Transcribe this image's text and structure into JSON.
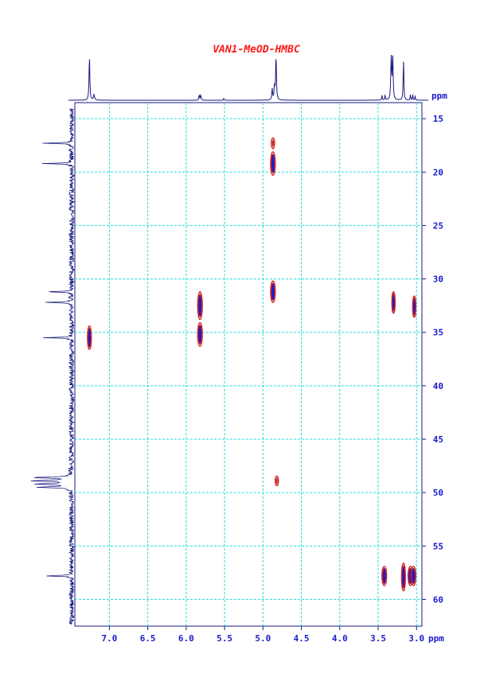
{
  "chart_data": {
    "type": "heatmap",
    "title": "VAN1-MeOD-HMBC",
    "x_unit": "ppm",
    "y_unit": "ppm",
    "xlim": [
      7.45,
      2.93
    ],
    "ylim": [
      13.5,
      62.5
    ],
    "x_ticks": [
      "7.0",
      "6.5",
      "6.0",
      "5.5",
      "5.0",
      "4.5",
      "4.0",
      "3.5",
      "3.0"
    ],
    "y_ticks": [
      "15",
      "20",
      "25",
      "30",
      "35",
      "40",
      "45",
      "50",
      "55",
      "60"
    ],
    "grid": true,
    "colors": {
      "frame": "#1a1a80",
      "grid": "#22dddd",
      "contour_pos": "#cc2222",
      "contour_neg": "#1a1ad0",
      "title": "#ff1a1a",
      "ticks": "#1a1acc"
    },
    "peaks": [
      {
        "h": 7.26,
        "c": 35.5,
        "dh": 0.025,
        "dc": 1.1,
        "weak": false
      },
      {
        "h": 5.82,
        "c": 32.5,
        "dh": 0.03,
        "dc": 1.3,
        "weak": false
      },
      {
        "h": 5.82,
        "c": 35.2,
        "dh": 0.03,
        "dc": 1.1,
        "weak": false
      },
      {
        "h": 4.87,
        "c": 17.3,
        "dh": 0.02,
        "dc": 0.5,
        "weak": true
      },
      {
        "h": 4.87,
        "c": 19.2,
        "dh": 0.03,
        "dc": 1.1,
        "weak": false
      },
      {
        "h": 4.87,
        "c": 31.2,
        "dh": 0.03,
        "dc": 1.0,
        "weak": false
      },
      {
        "h": 4.82,
        "c": 48.9,
        "dh": 0.01,
        "dc": 0.45,
        "weak": true
      },
      {
        "h": 3.3,
        "c": 32.2,
        "dh": 0.02,
        "dc": 1.0,
        "weak": false
      },
      {
        "h": 3.03,
        "c": 32.6,
        "dh": 0.02,
        "dc": 1.0,
        "weak": false
      },
      {
        "h": 3.42,
        "c": 57.8,
        "dh": 0.03,
        "dc": 0.9,
        "weak": false
      },
      {
        "h": 3.17,
        "c": 57.9,
        "dh": 0.025,
        "dc": 1.3,
        "weak": false
      },
      {
        "h": 3.08,
        "c": 57.8,
        "dh": 0.03,
        "dc": 0.9,
        "weak": false
      },
      {
        "h": 3.04,
        "c": 57.8,
        "dh": 0.03,
        "dc": 0.9,
        "weak": false
      }
    ],
    "proton_projection": [
      {
        "ppm": 7.26,
        "intensity": 0.98,
        "width": 0.006
      },
      {
        "ppm": 7.2,
        "intensity": 0.12,
        "width": 0.008
      },
      {
        "ppm": 5.83,
        "intensity": 0.12,
        "width": 0.005
      },
      {
        "ppm": 5.81,
        "intensity": 0.12,
        "width": 0.005
      },
      {
        "ppm": 5.51,
        "intensity": 0.04,
        "width": 0.004
      },
      {
        "ppm": 4.88,
        "intensity": 0.25,
        "width": 0.006
      },
      {
        "ppm": 4.85,
        "intensity": 0.3,
        "width": 0.006
      },
      {
        "ppm": 4.83,
        "intensity": 1.0,
        "width": 0.006
      },
      {
        "ppm": 3.45,
        "intensity": 0.12,
        "width": 0.004
      },
      {
        "ppm": 3.41,
        "intensity": 0.12,
        "width": 0.004
      },
      {
        "ppm": 3.33,
        "intensity": 1.0,
        "width": 0.006
      },
      {
        "ppm": 3.31,
        "intensity": 0.98,
        "width": 0.006
      },
      {
        "ppm": 3.17,
        "intensity": 0.93,
        "width": 0.005
      },
      {
        "ppm": 3.08,
        "intensity": 0.12,
        "width": 0.004
      },
      {
        "ppm": 3.05,
        "intensity": 0.12,
        "width": 0.004
      },
      {
        "ppm": 3.02,
        "intensity": 0.1,
        "width": 0.004
      }
    ],
    "carbon_projection": [
      {
        "ppm": 17.3,
        "intensity": 0.6,
        "width": 0.04
      },
      {
        "ppm": 19.2,
        "intensity": 0.6,
        "width": 0.04
      },
      {
        "ppm": 31.2,
        "intensity": 0.6,
        "width": 0.04
      },
      {
        "ppm": 32.2,
        "intensity": 0.6,
        "width": 0.04
      },
      {
        "ppm": 35.5,
        "intensity": 0.6,
        "width": 0.04
      },
      {
        "ppm": 48.6,
        "intensity": 0.8,
        "width": 0.06
      },
      {
        "ppm": 48.9,
        "intensity": 0.85,
        "width": 0.06
      },
      {
        "ppm": 49.2,
        "intensity": 0.8,
        "width": 0.06
      },
      {
        "ppm": 49.5,
        "intensity": 0.7,
        "width": 0.06
      },
      {
        "ppm": 57.8,
        "intensity": 0.6,
        "width": 0.04
      }
    ]
  }
}
